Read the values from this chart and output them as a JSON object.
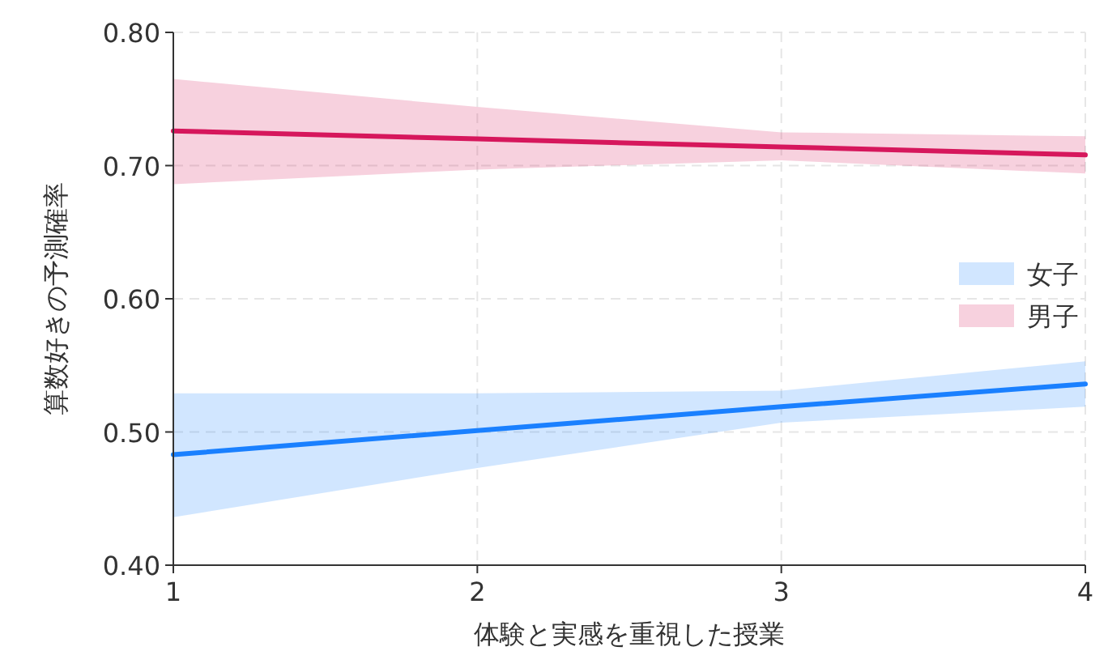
{
  "chart_data": {
    "type": "line",
    "xlabel": "体験と実感を重視した授業",
    "ylabel": "算数好きの予測確率",
    "x": [
      1,
      2,
      3,
      4
    ],
    "xlim": [
      1,
      4
    ],
    "xticks": [
      1,
      2,
      3,
      4
    ],
    "ylim": [
      0.4,
      0.8
    ],
    "yticks": [
      {
        "value": 0.4,
        "label": "0.40"
      },
      {
        "value": 0.5,
        "label": "0.50"
      },
      {
        "value": 0.6,
        "label": "0.60"
      },
      {
        "value": 0.7,
        "label": "0.70"
      },
      {
        "value": 0.8,
        "label": "0.80"
      }
    ],
    "grid": true,
    "legend": "right",
    "series": [
      {
        "name": "女子",
        "color": "#1a80ff",
        "values": [
          0.483,
          0.501,
          0.519,
          0.536
        ],
        "lower": [
          0.436,
          0.473,
          0.507,
          0.519
        ],
        "upper": [
          0.529,
          0.529,
          0.531,
          0.553
        ]
      },
      {
        "name": "男子",
        "color": "#d6175c",
        "values": [
          0.726,
          0.72,
          0.714,
          0.708
        ],
        "lower": [
          0.686,
          0.697,
          0.704,
          0.694
        ],
        "upper": [
          0.765,
          0.744,
          0.725,
          0.722
        ]
      }
    ]
  }
}
